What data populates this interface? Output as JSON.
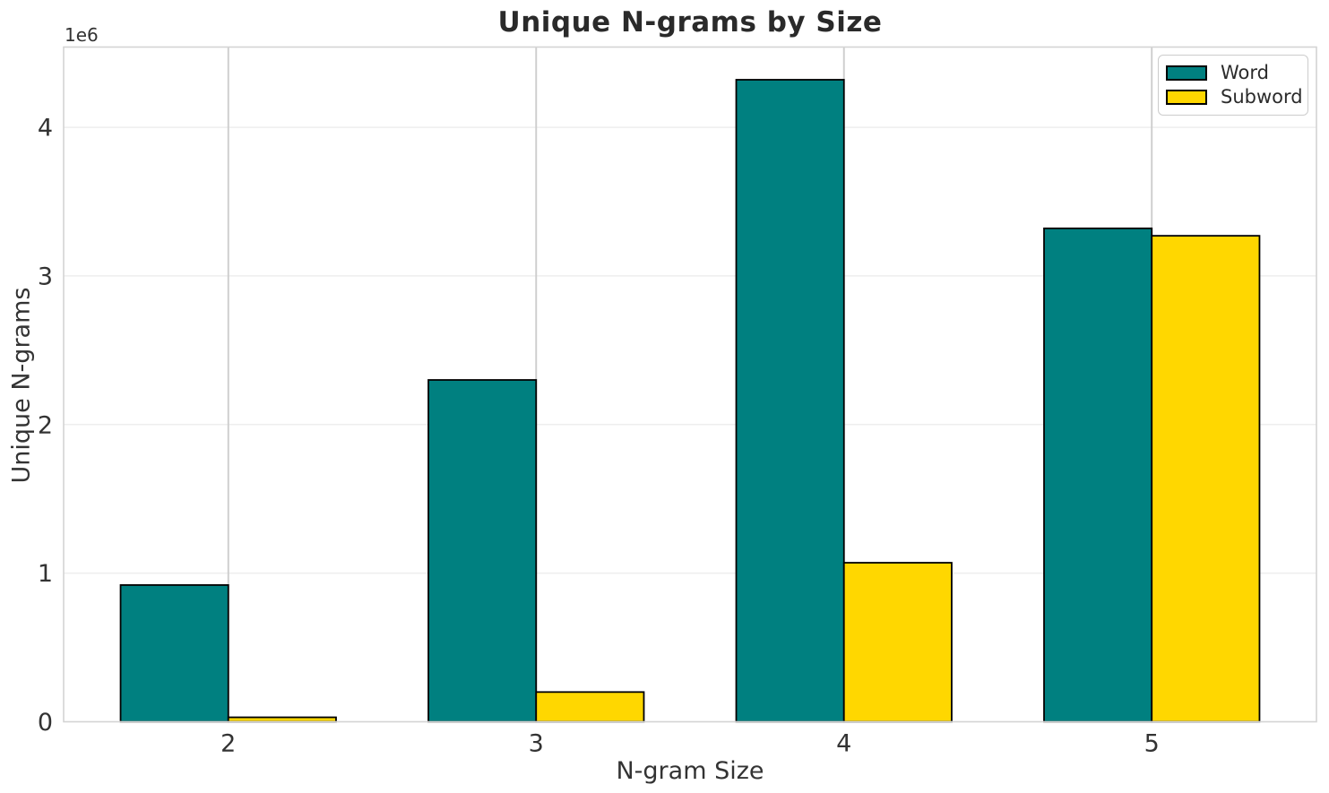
{
  "chart_data": {
    "type": "bar",
    "title": "Unique N-grams by Size",
    "xlabel": "N-gram Size",
    "ylabel": "Unique N-grams",
    "y_offset_label": "1e6",
    "categories": [
      "2",
      "3",
      "4",
      "5"
    ],
    "x_positions": [
      2,
      3,
      4,
      5
    ],
    "series": [
      {
        "name": "Word",
        "color": "#008080",
        "values": [
          920000,
          2300000,
          4320000,
          3320000
        ]
      },
      {
        "name": "Subword",
        "color": "#FFD700",
        "values": [
          30000,
          200000,
          1070000,
          3270000
        ]
      }
    ],
    "bar_edge_color": "#000000",
    "bar_width_units": 0.35,
    "xlim": [
      1.465,
      5.535
    ],
    "ylim": [
      0,
      4540000
    ],
    "yticks": {
      "values": [
        0,
        1000000,
        2000000,
        3000000,
        4000000
      ],
      "labels": [
        "0",
        "1",
        "2",
        "3",
        "4"
      ]
    },
    "grid": true,
    "legend_position": "upper right",
    "colors": {
      "background": "#ffffff",
      "grid_horizontal": "#eeeeee",
      "grid_vertical": "#cdcdcd",
      "spine": "#d4d4d4",
      "tick_text": "#333333",
      "title_text": "#2a2a2a"
    }
  }
}
